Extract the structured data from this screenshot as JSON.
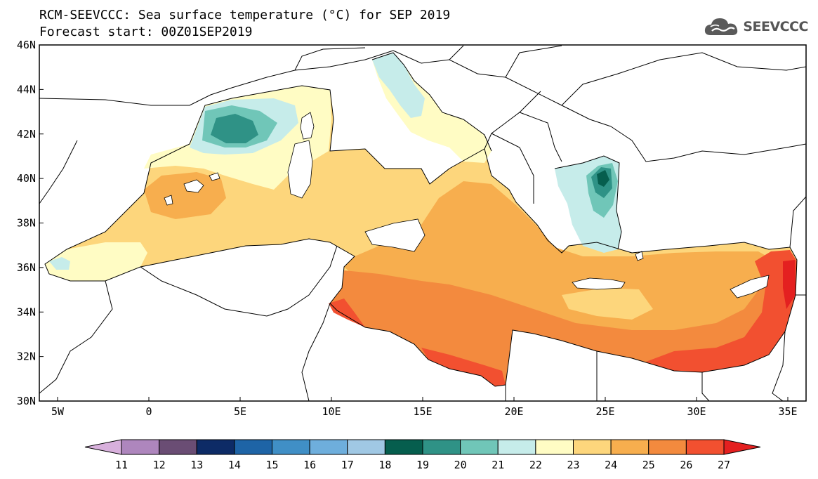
{
  "header": {
    "title_line1": "RCM-SEEVCCC: Sea surface temperature (°C) for SEP 2019",
    "title_line2": "Forecast start: 00Z01SEP2019"
  },
  "logo": {
    "text": "SEEVCCC",
    "icon": "cloud-icon",
    "color": "#555555"
  },
  "map": {
    "lat_labels": [
      "46N",
      "44N",
      "42N",
      "40N",
      "38N",
      "36N",
      "34N",
      "32N",
      "30N"
    ],
    "lon_labels": [
      "5W",
      "0",
      "5E",
      "10E",
      "15E",
      "20E",
      "25E",
      "30E",
      "35E"
    ],
    "lat_range": [
      30,
      46
    ],
    "lon_range": [
      -6,
      36
    ]
  },
  "colorbar": {
    "labels": [
      "11",
      "12",
      "13",
      "14",
      "15",
      "16",
      "17",
      "18",
      "19",
      "20",
      "21",
      "22",
      "23",
      "24",
      "25",
      "26",
      "27"
    ],
    "colors": [
      "#d8b0dc",
      "#ae86bd",
      "#6a4d74",
      "#0d2b66",
      "#1e64a6",
      "#408fc6",
      "#6eaedc",
      "#a0c8e4",
      "#065e4e",
      "#2f9286",
      "#70c6b8",
      "#c6ecea",
      "#fffcc4",
      "#fdd67c",
      "#f7ae4e",
      "#f38a3e",
      "#f25030",
      "#e42020"
    ]
  }
}
